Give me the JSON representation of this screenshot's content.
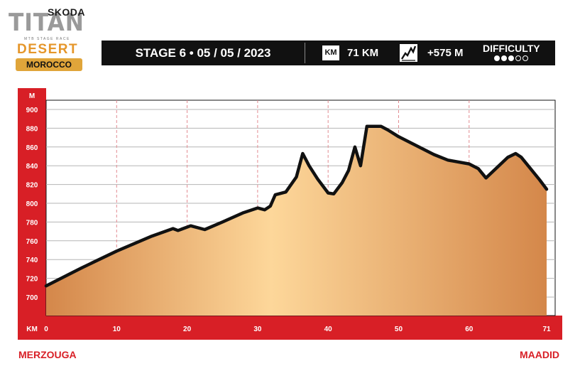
{
  "logo": {
    "brand": "SKODA",
    "name": "TITAN",
    "tagline": "MTB STAGE RACE",
    "event": "DESERT",
    "country": "MOROCCO"
  },
  "header": {
    "stage": "STAGE 6 • 05 / 05 / 2023",
    "distance_unit": "KM",
    "distance": "71 KM",
    "elevation": "+575 M",
    "difficulty_label": "DIFFICULTY",
    "difficulty_level": 3,
    "difficulty_max": 5
  },
  "route": {
    "start": "MERZOUGA",
    "finish": "MAADID"
  },
  "colors": {
    "accent_red": "#d81f26",
    "header_bg": "#111111",
    "fill_dark": "#d4874a",
    "fill_light": "#fdd79a"
  },
  "chart_data": {
    "type": "area",
    "title": "",
    "xlabel": "KM",
    "ylabel": "M",
    "xlim": [
      0,
      71
    ],
    "ylim": [
      680,
      910
    ],
    "xticks": [
      0,
      10,
      20,
      30,
      40,
      50,
      60,
      71
    ],
    "yticks": [
      700,
      720,
      740,
      760,
      780,
      800,
      820,
      840,
      860,
      880,
      900
    ],
    "grid": true,
    "series": [
      {
        "x": [
          0,
          5,
          10,
          15,
          18,
          18.7,
          20.5,
          22.5,
          25,
          28,
          30,
          31,
          31.8,
          32.5,
          34,
          35.5,
          36.4,
          37.3,
          38.5,
          40,
          40.8,
          42,
          42.9,
          43.8,
          44.6,
          45.5,
          47.5,
          48.5,
          50,
          55,
          57,
          60,
          61.3,
          62.4,
          65.5,
          66.6,
          67.4,
          70,
          71
        ],
        "y": [
          712,
          731,
          749,
          765,
          773,
          771,
          776,
          772,
          780,
          790,
          795,
          793,
          797,
          809,
          812,
          828,
          853,
          840,
          826,
          811,
          810,
          822,
          835,
          860,
          840,
          882,
          882,
          878,
          871,
          852,
          846,
          842,
          837,
          827,
          849,
          853,
          849,
          825,
          815
        ]
      }
    ]
  }
}
